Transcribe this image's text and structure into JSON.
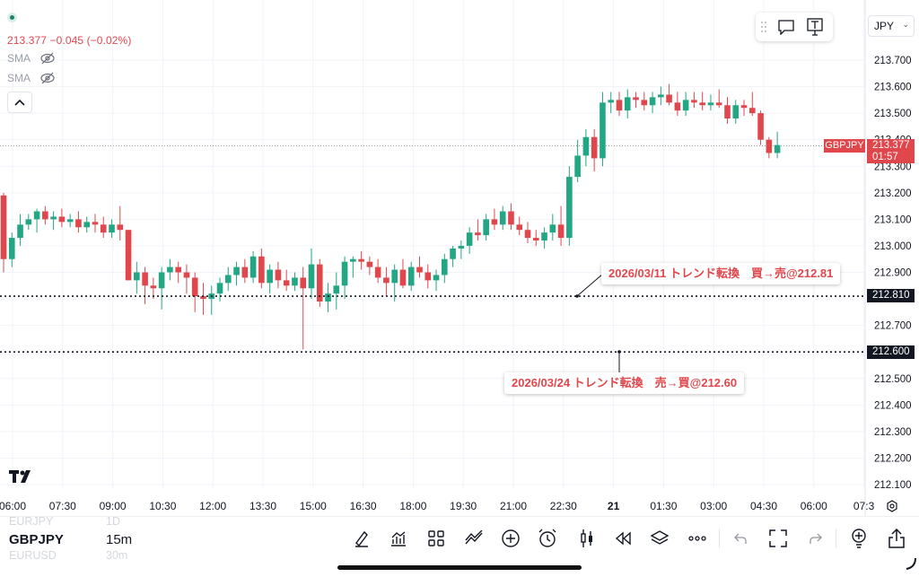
{
  "symbol": "GBPJPY",
  "timeframe": "15m",
  "legend": {
    "price": "213.377",
    "change": "−0.045 (−0.02%)",
    "indicators": [
      "SMA",
      "SMA"
    ]
  },
  "currency_selector": "JPY",
  "last_price": {
    "value": "213.377",
    "countdown": "01:57",
    "symbol_tag": "GBPJPY"
  },
  "horizontal_lines": [
    {
      "price_label": "212.810",
      "annotation": "2026/03/11  トレンド転換　買→売@212.81"
    },
    {
      "price_label": "212.600",
      "annotation": "2026/03/24 トレンド転換　売→買@212.60"
    }
  ],
  "watchlist_ghost": {
    "above": [
      "EURJPY",
      "1D"
    ],
    "below": [
      "EURUSD",
      "30m"
    ]
  },
  "toolbar_icons": [
    "pen-icon",
    "indicators-icon",
    "grid-icon",
    "drawing-tools-icon",
    "add-icon",
    "alarm-icon",
    "candle-type-icon",
    "replay-icon",
    "layers-icon",
    "more-icon",
    "undo-icon",
    "fullscreen-icon",
    "redo-icon",
    "idea-icon",
    "share-icon"
  ],
  "colors": {
    "up": "#22a684",
    "down": "#e0474c",
    "text": "#131722",
    "grid": "#f0f3fa"
  },
  "chart_data": {
    "type": "candlestick",
    "y_ticks": [
      "213.700",
      "213.600",
      "213.500",
      "213.400",
      "213.300",
      "213.200",
      "213.100",
      "213.000",
      "212.900",
      "212.800",
      "212.700",
      "212.600",
      "212.500",
      "212.400",
      "212.300",
      "212.200",
      "212.100"
    ],
    "x_ticks": [
      "06:00",
      "07:30",
      "09:00",
      "10:30",
      "12:00",
      "13:30",
      "15:00",
      "16:30",
      "18:00",
      "19:30",
      "21:00",
      "22:30",
      "21",
      "01:30",
      "03:00",
      "04:30",
      "06:00",
      "07:3"
    ],
    "ylim": [
      212.05,
      213.76
    ],
    "candles": [
      [
        213.19,
        213.2,
        212.9,
        212.95
      ],
      [
        212.95,
        213.05,
        212.92,
        213.03
      ],
      [
        213.03,
        213.12,
        213.0,
        213.08
      ],
      [
        213.08,
        213.12,
        213.06,
        213.1
      ],
      [
        213.1,
        213.14,
        213.05,
        213.13
      ],
      [
        213.13,
        213.15,
        213.08,
        213.1
      ],
      [
        213.1,
        213.13,
        213.06,
        213.11
      ],
      [
        213.11,
        213.14,
        213.07,
        213.09
      ],
      [
        213.09,
        213.12,
        213.07,
        213.1
      ],
      [
        213.1,
        213.13,
        213.05,
        213.07
      ],
      [
        213.07,
        213.11,
        213.05,
        213.09
      ],
      [
        213.09,
        213.12,
        213.05,
        213.08
      ],
      [
        213.08,
        213.11,
        213.03,
        213.05
      ],
      [
        213.05,
        213.1,
        213.03,
        213.08
      ],
      [
        213.08,
        213.15,
        213.02,
        213.06
      ],
      [
        213.06,
        213.06,
        212.87,
        212.87
      ],
      [
        212.87,
        212.94,
        212.82,
        212.9
      ],
      [
        212.9,
        212.92,
        212.78,
        212.85
      ],
      [
        212.85,
        212.88,
        212.8,
        212.84
      ],
      [
        212.84,
        212.92,
        212.76,
        212.9
      ],
      [
        212.9,
        212.95,
        212.87,
        212.92
      ],
      [
        212.92,
        212.94,
        212.86,
        212.9
      ],
      [
        212.9,
        212.93,
        212.82,
        212.88
      ],
      [
        212.88,
        212.9,
        212.75,
        212.81
      ],
      [
        212.81,
        212.86,
        212.74,
        212.8
      ],
      [
        212.8,
        212.85,
        212.74,
        212.82
      ],
      [
        212.82,
        212.88,
        212.79,
        212.86
      ],
      [
        212.86,
        212.92,
        212.83,
        212.89
      ],
      [
        212.89,
        212.94,
        212.85,
        212.92
      ],
      [
        212.92,
        212.95,
        212.86,
        212.88
      ],
      [
        212.88,
        212.98,
        212.86,
        212.96
      ],
      [
        212.96,
        212.99,
        212.84,
        212.86
      ],
      [
        212.86,
        212.93,
        212.82,
        212.91
      ],
      [
        212.91,
        212.94,
        212.84,
        212.87
      ],
      [
        212.87,
        212.91,
        212.83,
        212.85
      ],
      [
        212.85,
        212.9,
        212.83,
        212.88
      ],
      [
        212.88,
        212.92,
        212.61,
        212.84
      ],
      [
        212.84,
        212.99,
        212.8,
        212.93
      ],
      [
        212.93,
        212.95,
        212.77,
        212.79
      ],
      [
        212.79,
        212.86,
        212.75,
        212.82
      ],
      [
        212.82,
        212.9,
        212.76,
        212.85
      ],
      [
        212.85,
        212.96,
        212.8,
        212.94
      ],
      [
        212.94,
        212.96,
        212.88,
        212.95
      ],
      [
        212.95,
        212.98,
        212.91,
        212.94
      ],
      [
        212.94,
        212.96,
        212.89,
        212.92
      ],
      [
        212.92,
        212.95,
        212.86,
        212.88
      ],
      [
        212.88,
        212.92,
        212.81,
        212.86
      ],
      [
        212.86,
        212.93,
        212.79,
        212.91
      ],
      [
        212.91,
        212.95,
        212.84,
        212.85
      ],
      [
        212.85,
        212.94,
        212.83,
        212.92
      ],
      [
        212.92,
        212.96,
        212.88,
        212.9
      ],
      [
        212.9,
        212.93,
        212.84,
        212.87
      ],
      [
        212.87,
        212.91,
        212.83,
        212.89
      ],
      [
        212.89,
        212.97,
        212.86,
        212.95
      ],
      [
        212.95,
        213.0,
        212.92,
        212.99
      ],
      [
        212.99,
        213.02,
        212.95,
        213.0
      ],
      [
        213.0,
        213.07,
        212.97,
        213.05
      ],
      [
        213.05,
        213.1,
        213.02,
        213.04
      ],
      [
        213.04,
        213.12,
        213.02,
        213.1
      ],
      [
        213.1,
        213.14,
        213.06,
        213.08
      ],
      [
        213.08,
        213.15,
        213.06,
        213.13
      ],
      [
        213.13,
        213.16,
        213.06,
        213.08
      ],
      [
        213.08,
        213.11,
        213.04,
        213.06
      ],
      [
        213.06,
        213.09,
        213.01,
        213.03
      ],
      [
        213.03,
        213.06,
        213.0,
        213.02
      ],
      [
        213.02,
        213.07,
        212.99,
        213.05
      ],
      [
        213.05,
        213.12,
        213.02,
        213.08
      ],
      [
        213.08,
        213.15,
        213.0,
        213.03
      ],
      [
        213.03,
        213.3,
        213.0,
        213.26
      ],
      [
        213.26,
        213.4,
        213.24,
        213.34
      ],
      [
        213.34,
        213.44,
        213.3,
        213.41
      ],
      [
        213.41,
        213.44,
        213.28,
        213.33
      ],
      [
        213.33,
        213.58,
        213.3,
        213.54
      ],
      [
        213.54,
        213.58,
        213.5,
        213.55
      ],
      [
        213.55,
        213.58,
        213.49,
        213.51
      ],
      [
        213.51,
        213.59,
        213.48,
        213.56
      ],
      [
        213.56,
        213.58,
        213.52,
        213.55
      ],
      [
        213.55,
        213.58,
        213.51,
        213.53
      ],
      [
        213.53,
        213.58,
        213.5,
        213.56
      ],
      [
        213.56,
        213.6,
        213.53,
        213.57
      ],
      [
        213.57,
        213.61,
        213.53,
        213.54
      ],
      [
        213.54,
        213.58,
        213.49,
        213.51
      ],
      [
        213.51,
        213.58,
        213.49,
        213.55
      ],
      [
        213.55,
        213.58,
        213.52,
        213.54
      ],
      [
        213.54,
        213.58,
        213.51,
        213.53
      ],
      [
        213.53,
        213.57,
        213.51,
        213.54
      ],
      [
        213.54,
        213.59,
        213.52,
        213.53
      ],
      [
        213.53,
        213.56,
        213.46,
        213.48
      ],
      [
        213.48,
        213.55,
        213.46,
        213.53
      ],
      [
        213.53,
        213.55,
        213.49,
        213.52
      ],
      [
        213.52,
        213.58,
        213.49,
        213.5
      ],
      [
        213.5,
        213.51,
        213.38,
        213.4
      ],
      [
        213.4,
        213.41,
        213.33,
        213.35
      ],
      [
        213.35,
        213.43,
        213.33,
        213.38
      ]
    ]
  }
}
